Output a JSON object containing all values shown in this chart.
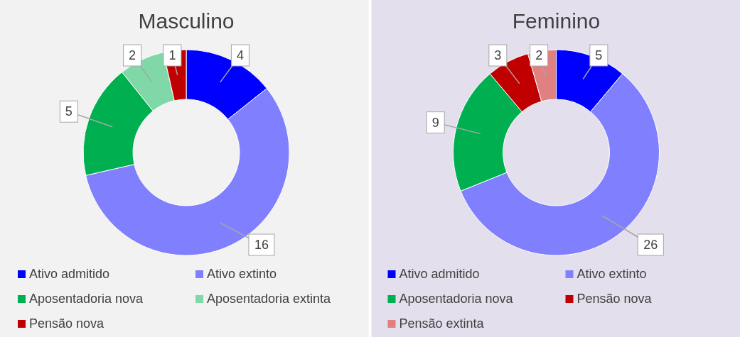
{
  "chart_data": [
    {
      "type": "donut",
      "title": "Masculino",
      "categories": [
        "Ativo admitido",
        "Ativo extinto",
        "Aposentadoria nova",
        "Aposentadoria extinta",
        "Pensão nova"
      ],
      "values": [
        4,
        16,
        5,
        2,
        1
      ],
      "colors": [
        "#0000ff",
        "#8080ff",
        "#00b050",
        "#80d8a8",
        "#c00000"
      ],
      "data_labels": true,
      "legend": "bottom"
    },
    {
      "type": "donut",
      "title": "Feminino",
      "categories": [
        "Ativo admitido",
        "Ativo extinto",
        "Aposentadoria nova",
        "Pensão nova",
        "Pensão extinta"
      ],
      "values": [
        5,
        26,
        9,
        3,
        2
      ],
      "colors": [
        "#0000ff",
        "#8080ff",
        "#00b050",
        "#c00000",
        "#e08080"
      ],
      "data_labels": true,
      "legend": "bottom"
    }
  ]
}
